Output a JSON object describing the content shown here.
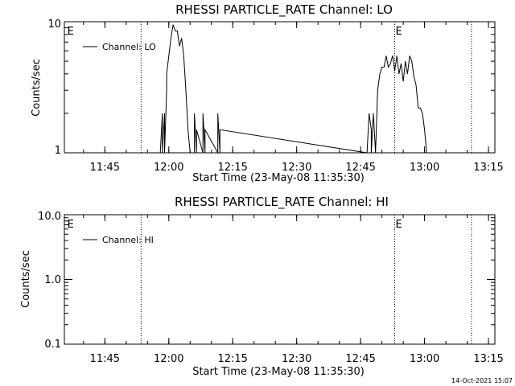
{
  "timestamp": "14-Oct-2021 15:07",
  "chart_data": [
    {
      "type": "line",
      "title": "RHESSI PARTICLE_RATE Channel: LO",
      "xlabel": "Start Time (23-May-08 11:35:30)",
      "ylabel": "Counts/sec",
      "yscale": "log",
      "ylim": [
        1,
        10
      ],
      "y_ticks": [
        1,
        10
      ],
      "y_tick_labels": [
        "1",
        "10"
      ],
      "xlim": [
        "11:35:30",
        "13:16:30"
      ],
      "x_ticks": [
        "11:45",
        "12:00",
        "12:15",
        "12:30",
        "12:45",
        "13:00",
        "13:15"
      ],
      "event_lines": [
        "11:53:30",
        "12:53:00",
        "13:11:00"
      ],
      "event_labels": [
        {
          "x": "11:36:00",
          "text": "E"
        },
        {
          "x": "12:53:00",
          "text": "E"
        }
      ],
      "legend": "top-left",
      "series": [
        {
          "name": "Channel: LO",
          "x": [
            "11:58:00",
            "11:58:30",
            "11:58:30",
            "11:59:00",
            "11:59:00",
            "11:59:30",
            "11:59:30",
            "12:00:00",
            "12:00:30",
            "12:01:00",
            "12:01:30",
            "12:02:00",
            "12:02:30",
            "12:03:00",
            "12:03:30",
            "12:04:00",
            "12:04:30",
            "12:05:00",
            "12:05:30",
            "12:06:00",
            "12:06:00",
            "12:06:30",
            "12:06:30",
            "12:08:00",
            "12:08:00",
            "12:08:30",
            "12:08:30",
            "12:11:30",
            "12:11:30",
            "12:12:00",
            "12:12:00",
            "12:46:30",
            "12:47:00",
            "12:47:30",
            "12:47:30",
            "12:48:00",
            "12:48:30",
            "12:49:00",
            "12:49:30",
            "12:50:00",
            "12:50:30",
            "12:51:00",
            "12:51:30",
            "12:52:00",
            "12:52:30",
            "12:53:00",
            "12:53:30",
            "12:54:00",
            "12:54:30",
            "12:55:00",
            "12:55:30",
            "12:56:00",
            "12:56:30",
            "12:57:00",
            "12:57:30",
            "12:58:00",
            "12:58:30",
            "12:59:00",
            "12:59:30",
            "13:00:00",
            "13:00:30",
            "13:01:00"
          ],
          "y": [
            1,
            2,
            1,
            2,
            1,
            3,
            4,
            5.5,
            7.5,
            9.5,
            8.5,
            8.5,
            6.5,
            7.5,
            5.5,
            3,
            1.5,
            1,
            1,
            1,
            2,
            1,
            1.5,
            1,
            2,
            1,
            1.5,
            1,
            2,
            1,
            1.5,
            1,
            2,
            1.5,
            1,
            2,
            1,
            3,
            4,
            4.5,
            4.5,
            5.5,
            4.5,
            4.8,
            5.5,
            4.2,
            5.5,
            4,
            4.8,
            3.5,
            5,
            4,
            5.5,
            5,
            3.8,
            3.3,
            2.2,
            2.2,
            2,
            1.5,
            1,
            1
          ]
        }
      ]
    },
    {
      "type": "line",
      "title": "RHESSI PARTICLE_RATE Channel: HI",
      "xlabel": "Start Time (23-May-08 11:35:30)",
      "ylabel": "Counts/sec",
      "yscale": "log",
      "ylim": [
        0.1,
        10
      ],
      "y_ticks": [
        0.1,
        1,
        10
      ],
      "y_tick_labels": [
        "0.1",
        "1.0",
        "10.0"
      ],
      "xlim": [
        "11:35:30",
        "13:16:30"
      ],
      "x_ticks": [
        "11:45",
        "12:00",
        "12:15",
        "12:30",
        "12:45",
        "13:00",
        "13:15"
      ],
      "event_lines": [
        "11:53:30",
        "12:53:00",
        "13:11:00"
      ],
      "event_labels": [
        {
          "x": "11:36:00",
          "text": "E"
        },
        {
          "x": "12:53:00",
          "text": "E"
        }
      ],
      "legend": "top-left",
      "series": [
        {
          "name": "Channel: HI",
          "x": [],
          "y": []
        }
      ]
    }
  ]
}
